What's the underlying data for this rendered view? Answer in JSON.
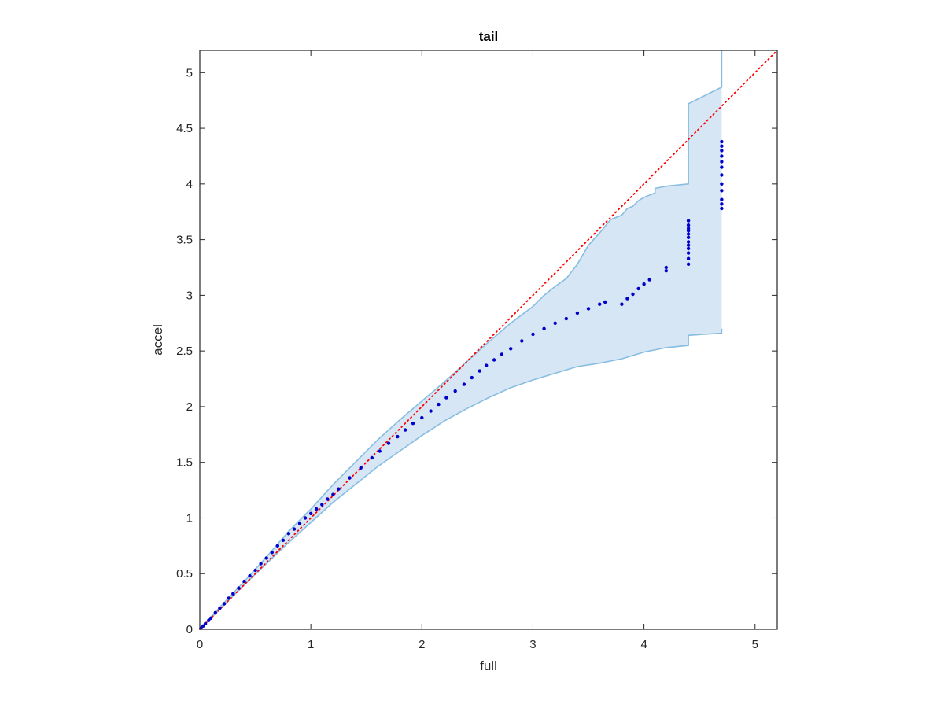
{
  "chart_data": {
    "type": "scatter",
    "title": "tail",
    "xlabel": "full",
    "ylabel": "accel",
    "xlim": [
      0,
      5.2
    ],
    "ylim": [
      0,
      5.2
    ],
    "xticks": [
      0,
      1,
      2,
      3,
      4,
      5
    ],
    "xtick_labels": [
      "0",
      "1",
      "2",
      "3",
      "4",
      "5"
    ],
    "yticks": [
      0,
      0.5,
      1,
      1.5,
      2,
      2.5,
      3,
      3.5,
      4,
      4.5,
      5
    ],
    "ytick_labels": [
      "0",
      "0.5",
      "1",
      "1.5",
      "2",
      "2.5",
      "3",
      "3.5",
      "4",
      "4.5",
      "5"
    ],
    "grid": false,
    "colors": {
      "points": "#0000cc",
      "reference_line": "#ff0000",
      "band_fill": "#d6e6f4",
      "band_edge": "#87bde0",
      "axes": "#262626"
    },
    "reference_line": {
      "style": "dotted",
      "x": [
        0,
        5.2
      ],
      "y": [
        0,
        5.2
      ]
    },
    "band_upper": {
      "x": [
        0,
        0.2,
        0.4,
        0.6,
        0.8,
        1.0,
        1.2,
        1.4,
        1.6,
        1.8,
        2.0,
        2.2,
        2.4,
        2.6,
        2.8,
        3.0,
        3.1,
        3.2,
        3.3,
        3.4,
        3.5,
        3.6,
        3.7,
        3.8,
        3.85,
        3.9,
        3.95,
        4.0,
        4.1,
        4.1,
        4.2,
        4.4,
        4.4,
        4.7,
        4.7
      ],
      "y": [
        0,
        0.22,
        0.43,
        0.65,
        0.88,
        1.08,
        1.3,
        1.5,
        1.7,
        1.88,
        2.05,
        2.22,
        2.4,
        2.58,
        2.75,
        2.9,
        3.0,
        3.08,
        3.15,
        3.28,
        3.45,
        3.56,
        3.68,
        3.72,
        3.78,
        3.8,
        3.85,
        3.88,
        3.92,
        3.96,
        3.98,
        4.0,
        4.72,
        4.87,
        5.2
      ]
    },
    "band_lower": {
      "x": [
        0,
        0.2,
        0.4,
        0.6,
        0.8,
        1.0,
        1.2,
        1.4,
        1.6,
        1.8,
        2.0,
        2.2,
        2.4,
        2.6,
        2.8,
        3.0,
        3.2,
        3.4,
        3.6,
        3.8,
        4.0,
        4.2,
        4.4,
        4.4,
        4.7,
        4.7
      ],
      "y": [
        0,
        0.2,
        0.4,
        0.59,
        0.78,
        0.96,
        1.14,
        1.3,
        1.46,
        1.6,
        1.74,
        1.87,
        1.98,
        2.08,
        2.17,
        2.24,
        2.3,
        2.36,
        2.39,
        2.43,
        2.49,
        2.53,
        2.55,
        2.64,
        2.66,
        2.7
      ]
    },
    "points": {
      "x": [
        0.01,
        0.03,
        0.05,
        0.08,
        0.1,
        0.14,
        0.18,
        0.22,
        0.26,
        0.3,
        0.35,
        0.4,
        0.45,
        0.5,
        0.55,
        0.6,
        0.65,
        0.7,
        0.75,
        0.8,
        0.85,
        0.9,
        0.95,
        1.0,
        1.05,
        1.1,
        1.15,
        1.2,
        1.25,
        1.35,
        1.45,
        1.55,
        1.62,
        1.7,
        1.78,
        1.85,
        1.92,
        2.0,
        2.08,
        2.15,
        2.22,
        2.3,
        2.38,
        2.45,
        2.52,
        2.58,
        2.65,
        2.72,
        2.8,
        2.9,
        3.0,
        3.1,
        3.2,
        3.3,
        3.4,
        3.5,
        3.6,
        3.65,
        3.8,
        3.85,
        3.9,
        3.95,
        4.0,
        4.05,
        4.2,
        4.2,
        4.4,
        4.4,
        4.4,
        4.4,
        4.4,
        4.4,
        4.4,
        4.4,
        4.4,
        4.4,
        4.4,
        4.4,
        4.7,
        4.7,
        4.7,
        4.7,
        4.7,
        4.7,
        4.7,
        4.7,
        4.7,
        4.7,
        4.7,
        4.7
      ],
      "y": [
        0.01,
        0.03,
        0.05,
        0.08,
        0.1,
        0.15,
        0.19,
        0.23,
        0.28,
        0.32,
        0.37,
        0.43,
        0.48,
        0.53,
        0.59,
        0.64,
        0.69,
        0.75,
        0.8,
        0.86,
        0.9,
        0.95,
        1.0,
        1.04,
        1.08,
        1.12,
        1.17,
        1.21,
        1.26,
        1.36,
        1.45,
        1.54,
        1.6,
        1.67,
        1.73,
        1.79,
        1.85,
        1.9,
        1.96,
        2.02,
        2.08,
        2.14,
        2.2,
        2.26,
        2.32,
        2.37,
        2.42,
        2.47,
        2.52,
        2.59,
        2.65,
        2.7,
        2.75,
        2.79,
        2.84,
        2.88,
        2.92,
        2.94,
        2.92,
        2.97,
        3.01,
        3.06,
        3.1,
        3.14,
        3.22,
        3.25,
        3.28,
        3.33,
        3.38,
        3.42,
        3.45,
        3.48,
        3.52,
        3.55,
        3.58,
        3.6,
        3.63,
        3.67,
        3.78,
        3.82,
        3.86,
        3.94,
        4.0,
        4.08,
        4.15,
        4.2,
        4.25,
        4.3,
        4.34,
        4.38
      ]
    }
  }
}
